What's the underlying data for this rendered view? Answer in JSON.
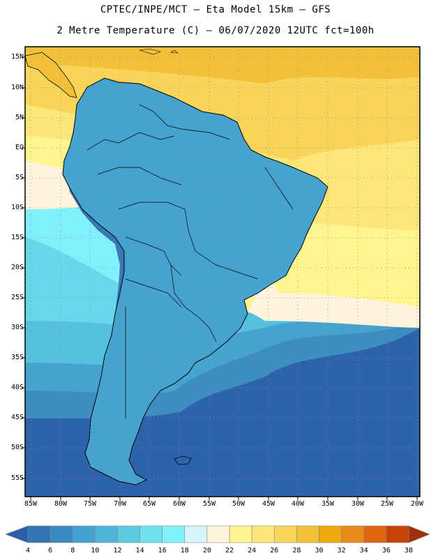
{
  "header": {
    "line1": "CPTEC/INPE/MCT –  Eta Model 15km – GFS",
    "line2": "2 Metre Temperature (C) – 06/07/2020 12UTC fct=100h"
  },
  "map": {
    "lat_labels": [
      "15N",
      "10N",
      "5N",
      "EQ",
      "5S",
      "10S",
      "15S",
      "20S",
      "25S",
      "30S",
      "35S",
      "40S",
      "45S",
      "50S",
      "55S"
    ],
    "lon_labels": [
      "85W",
      "80W",
      "75W",
      "70W",
      "65W",
      "60W",
      "55W",
      "50W",
      "45W",
      "40W",
      "35W",
      "30W",
      "25W",
      "20W"
    ],
    "grid": "dotted"
  },
  "colorbar": {
    "ticks": [
      "4",
      "6",
      "8",
      "10",
      "12",
      "14",
      "16",
      "18",
      "20",
      "22",
      "24",
      "26",
      "28",
      "30",
      "32",
      "34",
      "36",
      "38"
    ],
    "colors": [
      "#2a5ea8",
      "#3274b4",
      "#3a89c2",
      "#44a0cf",
      "#4fb6da",
      "#5bcbe2",
      "#6ee0ee",
      "#80f2fb",
      "#d8f6fa",
      "#fff5dc",
      "#fff48d",
      "#fce67a",
      "#f8d55a",
      "#f3c03a",
      "#efa810",
      "#ea8a18",
      "#e16412",
      "#c84208",
      "#a0300a"
    ]
  }
}
